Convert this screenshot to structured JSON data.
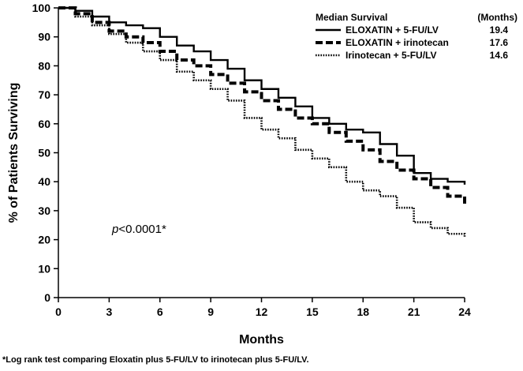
{
  "chart_data": {
    "type": "line",
    "title": "",
    "xlabel": "Months",
    "ylabel": "% of Patients Surviving",
    "xlim": [
      0,
      24
    ],
    "ylim": [
      0,
      100
    ],
    "x_ticks": [
      0,
      3,
      6,
      9,
      12,
      15,
      18,
      21,
      24
    ],
    "y_ticks": [
      0,
      10,
      20,
      30,
      40,
      50,
      60,
      70,
      80,
      90,
      100
    ],
    "grid": false,
    "legend": {
      "position": "top-right",
      "header_left": "Median Survival",
      "header_right": "(Months)"
    },
    "series": [
      {
        "name": "ELOXATIN + 5-FU/LV",
        "median": "19.4",
        "style": "solid",
        "x": [
          0,
          1,
          2,
          3,
          4,
          5,
          6,
          7,
          8,
          9,
          10,
          11,
          12,
          13,
          14,
          15,
          16,
          17,
          18,
          19,
          20,
          21,
          22,
          23,
          24
        ],
        "y": [
          100,
          99,
          97,
          95,
          94,
          93,
          90,
          87,
          85,
          82,
          79,
          75,
          72,
          69,
          66,
          62,
          60,
          58,
          57,
          53,
          49,
          43,
          41,
          40,
          39
        ]
      },
      {
        "name": "ELOXATIN + irinotecan",
        "median": "17.6",
        "style": "dashed",
        "x": [
          0,
          1,
          2,
          3,
          4,
          5,
          6,
          7,
          8,
          9,
          10,
          11,
          12,
          13,
          14,
          15,
          16,
          17,
          18,
          19,
          20,
          21,
          22,
          23,
          24
        ],
        "y": [
          100,
          98,
          95,
          92,
          90,
          88,
          85,
          82,
          80,
          77,
          74,
          71,
          68,
          65,
          62,
          60,
          57,
          54,
          51,
          47,
          44,
          41,
          38,
          35,
          32
        ]
      },
      {
        "name": "Irinotecan + 5-FU/LV",
        "median": "14.6",
        "style": "dotted",
        "x": [
          0,
          1,
          2,
          3,
          4,
          5,
          6,
          7,
          8,
          9,
          10,
          11,
          12,
          13,
          14,
          15,
          16,
          17,
          18,
          19,
          20,
          21,
          22,
          23,
          24
        ],
        "y": [
          100,
          97,
          94,
          91,
          88,
          85,
          82,
          78,
          75,
          72,
          68,
          62,
          58,
          55,
          51,
          48,
          45,
          40,
          37,
          35,
          31,
          26,
          24,
          22,
          21
        ]
      }
    ],
    "annotation": "p<0.0001*"
  },
  "footnote": "*Log rank test comparing Eloxatin plus 5-FU/LV to irinotecan plus 5-FU/LV."
}
